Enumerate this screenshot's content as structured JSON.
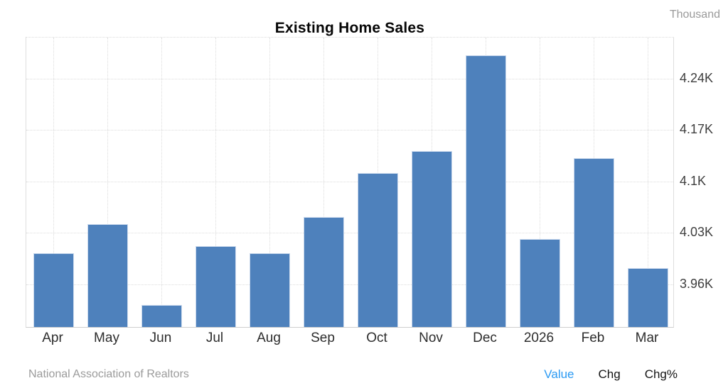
{
  "title": "Existing Home Sales",
  "unit_note": "Thousand",
  "source": "National Association of Realtors",
  "toolbar": {
    "options": [
      {
        "label": "Value",
        "active": true
      },
      {
        "label": "Chg",
        "active": false
      },
      {
        "label": "Chg%",
        "active": false
      }
    ]
  },
  "colors": {
    "bar": "#4e81bc",
    "bar_border": "#c9d8ec",
    "grid": "#dcdcdc",
    "axis_text": "#3e3e3e",
    "muted_text": "#9b9b9b",
    "active_option": "#2b9af3"
  },
  "chart_data": {
    "type": "bar",
    "title": "Existing Home Sales",
    "unit": "K (Thousand)",
    "categories": [
      "Apr",
      "May",
      "Jun",
      "Jul",
      "Aug",
      "Sep",
      "Oct",
      "Nov",
      "Dec",
      "2026",
      "Feb",
      "Mar"
    ],
    "values": [
      4.0,
      4.04,
      3.93,
      4.01,
      4.0,
      4.05,
      4.11,
      4.14,
      4.27,
      4.02,
      4.13,
      3.98
    ],
    "y_ticks": [
      "3.96K",
      "4.03K",
      "4.1K",
      "4.17K",
      "4.24K"
    ],
    "y_tick_values": [
      3.96,
      4.03,
      4.1,
      4.17,
      4.24
    ],
    "ylim": [
      3.9,
      4.296
    ],
    "xlabel": "",
    "ylabel": "Thousand",
    "grid": true,
    "legend_position": "none",
    "value_axis_side": "right"
  }
}
